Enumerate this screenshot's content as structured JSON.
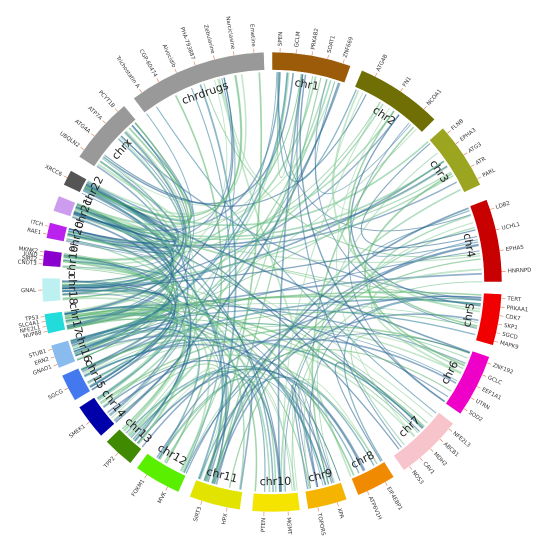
{
  "segments": [
    {
      "label": "chr1",
      "color": "#9b5b08",
      "genes": [
        "SPEN",
        "GCLM",
        "PRKAB2",
        "SOAT1",
        "ZNF669"
      ]
    },
    {
      "label": "chr2",
      "color": "#6f6f05",
      "genes": [
        "ATG4B",
        "FN1",
        "NCOA1"
      ]
    },
    {
      "label": "chr3",
      "color": "#9ba520",
      "genes": [
        "FLNB",
        "EPHA3",
        "ATG3",
        "ATR",
        "PARL"
      ]
    },
    {
      "label": "chr4",
      "color": "#c80000",
      "genes": [
        "LDB2",
        "UCHL1",
        "EPHA5",
        "HNRNPD"
      ]
    },
    {
      "label": "chr5",
      "color": "#f00000",
      "genes": [
        "TERT",
        "PRKAA1",
        "CDK7",
        "SKP1",
        "SGCD",
        "MAPK9"
      ]
    },
    {
      "label": "chr6",
      "color": "#ee00c8",
      "genes": [
        "ZNF192",
        "GCLC",
        "EEF1A1",
        "UTRN",
        "SOD2"
      ]
    },
    {
      "label": "chr7",
      "color": "#f8c4cc",
      "genes": [
        "NFE2L3",
        "ABCB1",
        "MDH2",
        "CAV1",
        "NOS3"
      ]
    },
    {
      "label": "chr8",
      "color": "#f08a00",
      "genes": [
        "EIF4EBP1",
        "ATP6V1H"
      ]
    },
    {
      "label": "chr9",
      "color": "#f5b400",
      "genes": [
        "XPA",
        "TOPORS"
      ]
    },
    {
      "label": "chr10",
      "color": "#f5e400",
      "genes": [
        "MGMT",
        "PTEN"
      ]
    },
    {
      "label": "chr11",
      "color": "#e2e400",
      "genes": [
        "HPX",
        "SIRT3"
      ]
    },
    {
      "label": "chr12",
      "color": "#5aee00",
      "genes": [
        "MVK",
        "FOXM1"
      ]
    },
    {
      "label": "chr13",
      "color": "#3f8a00",
      "genes": [
        "TPP2"
      ]
    },
    {
      "label": "chr14",
      "color": "#0000aa",
      "genes": [
        "SMEK1"
      ]
    },
    {
      "label": "chr15",
      "color": "#4478ee",
      "genes": [
        "SGCG"
      ]
    },
    {
      "label": "chr16",
      "color": "#8abbee",
      "genes": [
        "GNAO1",
        "ERN2",
        "STUB1"
      ]
    },
    {
      "label": "chr17",
      "color": "#22dcdc",
      "genes": [
        "NUP88",
        "NFE2L1",
        "SLC4A1",
        "TP53"
      ]
    },
    {
      "label": "chr18",
      "color": "#bdf0f0",
      "genes": [
        "GNAL"
      ]
    },
    {
      "label": "chr19",
      "color": "#8a00cc",
      "genes": [
        "CNOT3",
        "SIRT2",
        "JUND",
        "MKNK2"
      ]
    },
    {
      "label": "chr20",
      "color": "#bb22ee",
      "genes": [
        "RAE1",
        "ITCH"
      ]
    },
    {
      "label": "chr21",
      "color": "#cc9cee",
      "genes": []
    },
    {
      "label": "chr22",
      "color": "#555555",
      "genes": [
        "XRCC6"
      ]
    },
    {
      "label": "chrx",
      "color": "#999999",
      "genes": [
        "UBQLN2",
        "ATG4A",
        "ATP7A",
        "PCYT1B"
      ]
    },
    {
      "label": "chrdrugs",
      "color": "#999999",
      "genes": [
        "Trichostatin A",
        "CGP-60474",
        "Alvocidib",
        "PHA-793887",
        "Zebularine",
        "Narciclasine",
        "Emetine"
      ]
    }
  ]
}
